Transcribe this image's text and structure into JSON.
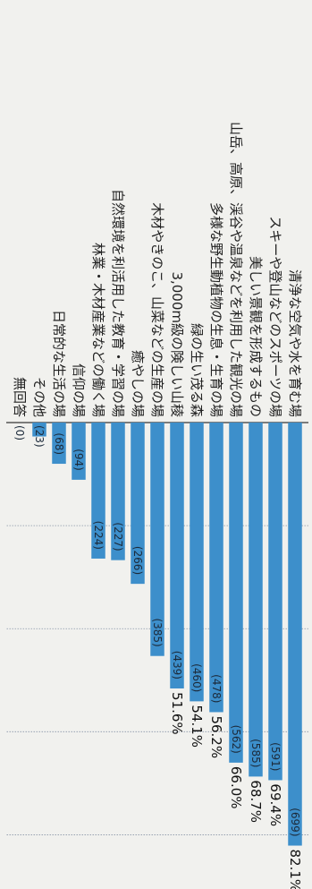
{
  "chart_data": {
    "type": "bar",
    "orientation": "horizontal",
    "categories": [
      "清浄な空気や水を育む場",
      "スキーや登山などのスポーツの場",
      "美しい景観を形成するもの",
      "山岳、高原、渓谷や温泉などを利用した観光の場",
      "多様な野生動植物の生息・生育の場",
      "緑の生い茂る森",
      "3,000m級の険しい山稜",
      "木材やきのこ、山菜などの生産の場",
      "癒やしの場",
      "自然環境を利活用した教育・学習の場",
      "林業・木材産業などの働く場",
      "信仰の場",
      "日常的な生活の場",
      "その他",
      "無回答"
    ],
    "values": [
      82.1,
      69.4,
      68.7,
      66.0,
      56.2,
      54.1,
      51.6,
      45.3,
      31.3,
      26.7,
      26.4,
      11.1,
      8.0,
      2.7,
      0
    ],
    "counts": [
      "(699)",
      "(591)",
      "(585)",
      "(562)",
      "(478)",
      "(460)",
      "(439)",
      "(385)",
      "(266)",
      "(227)",
      "(224)",
      "(94)",
      "(68)",
      "(23)",
      "(0)"
    ],
    "percent_labels": [
      "82.1%",
      "69.4%",
      "68.7%",
      "66.0%",
      "56.2%",
      "54.1%",
      "51.6%",
      "",
      "",
      "",
      "",
      "",
      "",
      "",
      ""
    ],
    "xlim": [
      0,
      90
    ],
    "grid": true,
    "legend": "none",
    "colors": {
      "bar": "#3d8fcb",
      "grid": "#8a96a8",
      "axis": "#555555",
      "text": "#222222"
    }
  }
}
